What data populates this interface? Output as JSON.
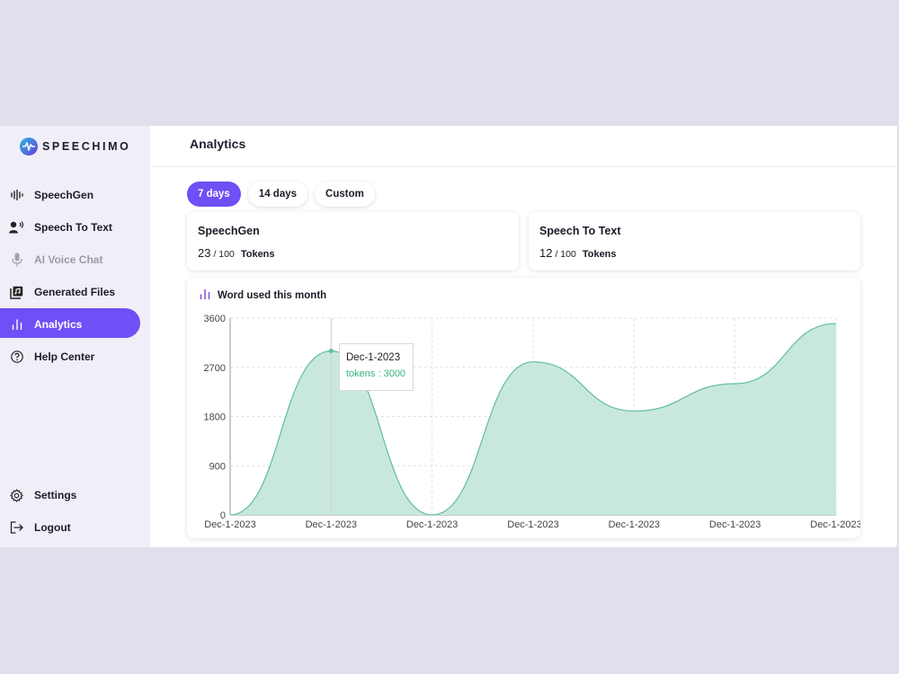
{
  "brand": {
    "name": "SPEECHIMO"
  },
  "sidebar": {
    "items": [
      {
        "label": "SpeechGen",
        "icon": "waveform-icon",
        "state": "normal"
      },
      {
        "label": "Speech To Text",
        "icon": "speaker-person-icon",
        "state": "normal"
      },
      {
        "label": "AI Voice Chat",
        "icon": "microphone-icon",
        "state": "disabled"
      },
      {
        "label": "Generated Files",
        "icon": "files-icon",
        "state": "normal"
      },
      {
        "label": "Analytics",
        "icon": "bar-chart-icon",
        "state": "active"
      },
      {
        "label": "Help Center",
        "icon": "help-circle-icon",
        "state": "normal"
      }
    ],
    "bottom_items": [
      {
        "label": "Settings",
        "icon": "gear-icon"
      },
      {
        "label": "Logout",
        "icon": "logout-icon"
      }
    ]
  },
  "header": {
    "title": "Analytics"
  },
  "range_tabs": [
    {
      "label": "7 days",
      "active": true
    },
    {
      "label": "14 days",
      "active": false
    },
    {
      "label": "Custom",
      "active": false
    }
  ],
  "stats": [
    {
      "title": "SpeechGen",
      "value": "23",
      "max": "/ 100",
      "unit": "Tokens"
    },
    {
      "title": "Speech To Text",
      "value": "12",
      "max": "/ 100",
      "unit": "Tokens"
    }
  ],
  "colors": {
    "accent": "#6f4ff6",
    "chart_fill": "#c8e8df",
    "chart_line": "#5fbf98",
    "tooltip_value": "#37b47f"
  },
  "chart": {
    "title": "Word used this month",
    "tooltip": {
      "date": "Dec-1-2023",
      "text": "tokens : 3000"
    }
  },
  "chart_data": {
    "type": "area",
    "title": "Word used this month",
    "x": [
      "Dec-1-2023",
      "Dec-1-2023",
      "Dec-1-2023",
      "Dec-1-2023",
      "Dec-1-2023",
      "Dec-1-2023",
      "Dec-1-2023"
    ],
    "y": [
      0,
      3000,
      0,
      2800,
      1900,
      2400,
      3500
    ],
    "y_ticks": [
      0,
      900,
      1800,
      2700,
      3600
    ],
    "ylim": [
      0,
      3600
    ],
    "grid": true,
    "legend": "none",
    "highlighted_index": 1
  }
}
